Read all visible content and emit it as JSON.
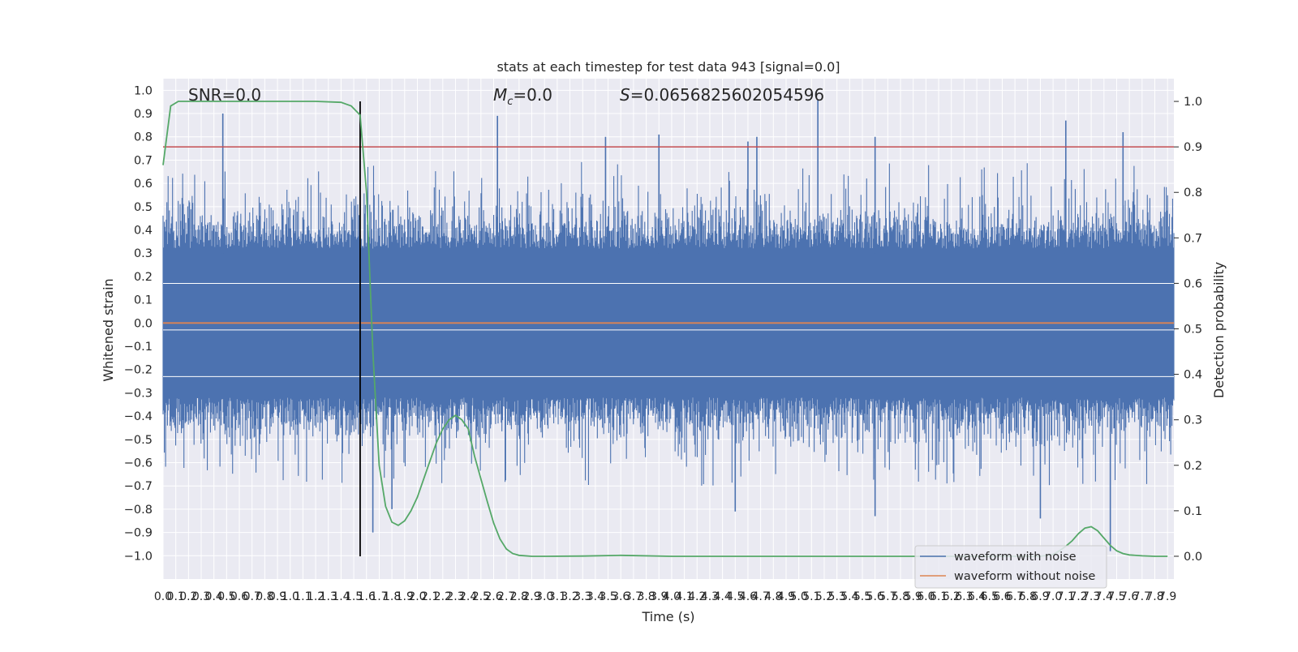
{
  "chart_data": {
    "type": "line",
    "title": "stats at each timestep for test data 943 [signal=0.0]",
    "annotations": {
      "snr": "SNR=0.0",
      "mc_symbol": "M",
      "mc_subscript": "c",
      "mc_value": "=0.0",
      "s_symbol": "S",
      "s_value": "=0.0656825602054596"
    },
    "xlabel": "Time (s)",
    "ylabel_left": "Whitened strain",
    "ylabel_right": "Detection probability",
    "xlim": [
      0.0,
      7.95
    ],
    "ylim_left": [
      -1.1,
      1.05
    ],
    "ylim_right": [
      -0.05,
      1.05
    ],
    "x_ticks": [
      "0.0",
      "0.1",
      "0.2",
      "0.3",
      "0.4",
      "0.5",
      "0.6",
      "0.7",
      "0.8",
      "0.9",
      "1.0",
      "1.1",
      "1.2",
      "1.3",
      "1.4",
      "1.5",
      "1.6",
      "1.7",
      "1.8",
      "1.9",
      "2.0",
      "2.1",
      "2.2",
      "2.3",
      "2.4",
      "2.5",
      "2.6",
      "2.7",
      "2.8",
      "2.9",
      "3.0",
      "3.1",
      "3.2",
      "3.3",
      "3.4",
      "3.5",
      "3.6",
      "3.7",
      "3.8",
      "3.9",
      "4.0",
      "4.1",
      "4.2",
      "4.3",
      "4.4",
      "4.5",
      "4.6",
      "4.7",
      "4.8",
      "4.9",
      "5.0",
      "5.1",
      "5.2",
      "5.3",
      "5.4",
      "5.5",
      "5.6",
      "5.7",
      "5.8",
      "5.9",
      "6.0",
      "6.1",
      "6.2",
      "6.3",
      "6.4",
      "6.5",
      "6.6",
      "6.7",
      "6.8",
      "6.9",
      "7.0",
      "7.1",
      "7.2",
      "7.3",
      "7.4",
      "7.5",
      "7.6",
      "7.7",
      "7.8",
      "7.9"
    ],
    "y_ticks_left": [
      "1.0",
      "0.9",
      "0.8",
      "0.7",
      "0.6",
      "0.5",
      "0.4",
      "0.3",
      "0.2",
      "0.1",
      "0.0",
      "−0.1",
      "−0.2",
      "−0.3",
      "−0.4",
      "−0.5",
      "−0.6",
      "−0.7",
      "−0.8",
      "−0.9",
      "−1.0"
    ],
    "y_ticks_right": [
      "1.0",
      "0.9",
      "0.8",
      "0.7",
      "0.6",
      "0.5",
      "0.4",
      "0.3",
      "0.2",
      "0.1",
      "0.0"
    ],
    "threshold_value": 0.9,
    "threshold_color": "#c44e52",
    "marker_time": 1.55,
    "marker_color": "#000000",
    "background_color": "#eaeaf2",
    "grid": true,
    "legend_position": "bottom-right",
    "series": [
      {
        "name": "waveform with noise",
        "color": "#4c72b0",
        "axis": "left",
        "peak_markers": [
          {
            "x": 0.47,
            "y": 0.9
          },
          {
            "x": 2.63,
            "y": 0.89
          },
          {
            "x": 3.48,
            "y": 0.8
          },
          {
            "x": 3.9,
            "y": 0.81
          },
          {
            "x": 4.6,
            "y": 0.78
          },
          {
            "x": 4.67,
            "y": 0.8
          },
          {
            "x": 5.15,
            "y": 0.96
          },
          {
            "x": 5.6,
            "y": 0.8
          },
          {
            "x": 7.1,
            "y": 0.87
          },
          {
            "x": 7.55,
            "y": 0.82
          },
          {
            "x": 1.65,
            "y": -0.9
          },
          {
            "x": 1.8,
            "y": -0.8
          },
          {
            "x": 4.5,
            "y": -0.81
          },
          {
            "x": 5.6,
            "y": -0.83
          },
          {
            "x": 6.9,
            "y": -0.84
          },
          {
            "x": 7.45,
            "y": -0.98
          }
        ]
      },
      {
        "name": "waveform without noise",
        "color": "#dd8452",
        "axis": "left",
        "x": [
          0.0,
          7.95
        ],
        "y": [
          0.0,
          0.0
        ]
      },
      {
        "name": "detection probability",
        "color": "#55a868",
        "axis": "right",
        "x": [
          0.0,
          0.06,
          0.12,
          0.2,
          0.4,
          0.8,
          1.2,
          1.4,
          1.48,
          1.55,
          1.6,
          1.65,
          1.7,
          1.75,
          1.8,
          1.85,
          1.9,
          1.95,
          2.0,
          2.05,
          2.1,
          2.15,
          2.2,
          2.25,
          2.3,
          2.35,
          2.4,
          2.45,
          2.5,
          2.55,
          2.6,
          2.65,
          2.7,
          2.75,
          2.8,
          2.9,
          3.0,
          3.3,
          3.6,
          4.0,
          5.0,
          6.0,
          6.5,
          6.9,
          7.0,
          7.05,
          7.1,
          7.15,
          7.2,
          7.25,
          7.3,
          7.35,
          7.4,
          7.45,
          7.5,
          7.55,
          7.6,
          7.7,
          7.8,
          7.9
        ],
        "y": [
          0.86,
          0.99,
          1.0,
          1.0,
          1.0,
          1.0,
          1.0,
          0.998,
          0.99,
          0.97,
          0.8,
          0.45,
          0.2,
          0.11,
          0.075,
          0.068,
          0.078,
          0.1,
          0.13,
          0.17,
          0.21,
          0.25,
          0.28,
          0.3,
          0.31,
          0.3,
          0.28,
          0.22,
          0.17,
          0.12,
          0.073,
          0.038,
          0.016,
          0.006,
          0.002,
          0.0,
          0.0,
          0.0005,
          0.002,
          0.0,
          0.0,
          0.0,
          0.0,
          0.0,
          0.004,
          0.012,
          0.022,
          0.034,
          0.05,
          0.062,
          0.065,
          0.056,
          0.04,
          0.024,
          0.012,
          0.006,
          0.003,
          0.001,
          0.0,
          0.0
        ]
      }
    ]
  }
}
